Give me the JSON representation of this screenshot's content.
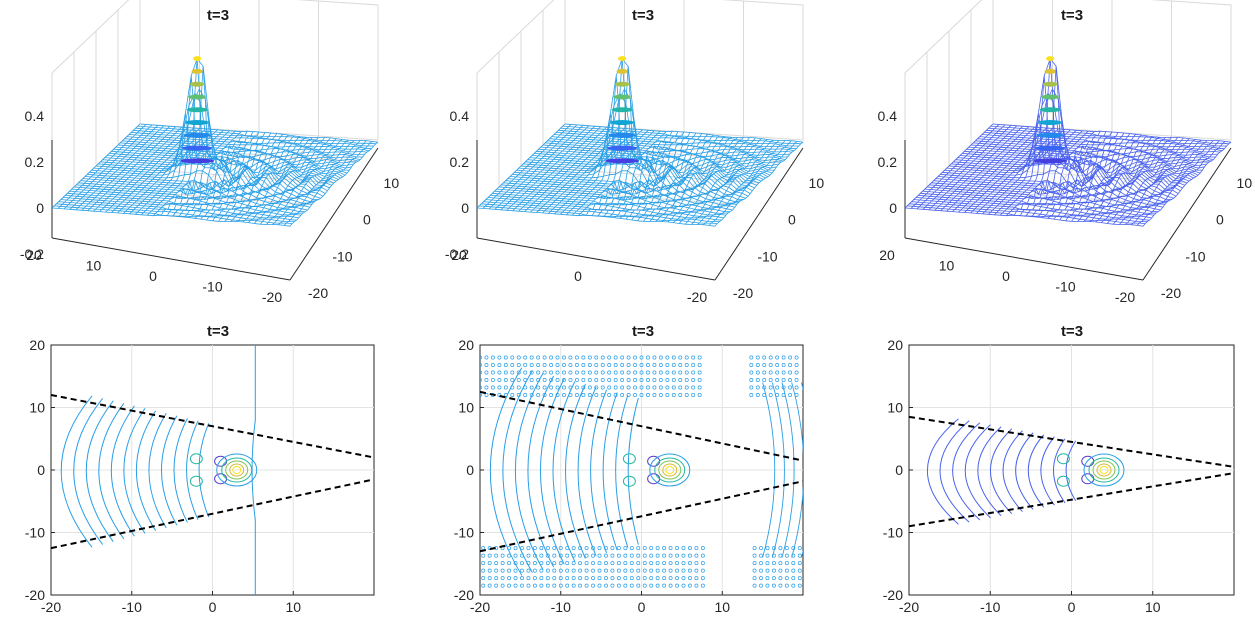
{
  "figure": {
    "layout": "2 rows x 3 columns",
    "colormap": "parula",
    "panel_title": "t=3"
  },
  "chart_data": [
    {
      "type": "surface",
      "title": "t=3",
      "z_ticks": [
        "-0.2",
        "0",
        "0.2",
        "0.4"
      ],
      "x_ticks": [
        "20",
        "10",
        "0",
        "-10",
        "-20"
      ],
      "y_ticks": [
        "-20",
        "-10",
        "0",
        "10"
      ],
      "xlim": [
        -20,
        20
      ],
      "ylim": [
        -20,
        20
      ],
      "zlim": [
        -0.25,
        0.55
      ],
      "peak": {
        "x": 3,
        "y": 0,
        "z": 0.5
      },
      "color": "#2a9fe6"
    },
    {
      "type": "surface",
      "title": "t=3",
      "z_ticks": [
        "-0.2",
        "0",
        "0.2",
        "0.4"
      ],
      "x_ticks": [
        "20",
        "0",
        "-20"
      ],
      "y_ticks": [
        "-20",
        "-10",
        "0",
        "10"
      ],
      "xlim": [
        -20,
        20
      ],
      "ylim": [
        -20,
        20
      ],
      "zlim": [
        -0.25,
        0.55
      ],
      "peak": {
        "x": 3,
        "y": 0,
        "z": 0.5
      },
      "color": "#2a9fe6"
    },
    {
      "type": "surface",
      "title": "t=3",
      "z_ticks": [
        "0",
        "0.2",
        "0.4"
      ],
      "x_ticks": [
        "20",
        "10",
        "0",
        "-10",
        "-20"
      ],
      "y_ticks": [
        "-20",
        "-10",
        "0",
        "10"
      ],
      "xlim": [
        -20,
        20
      ],
      "ylim": [
        -20,
        20
      ],
      "zlim": [
        -0.05,
        0.55
      ],
      "peak": {
        "x": 3,
        "y": 0,
        "z": 0.5
      },
      "color": "#4a63ee"
    },
    {
      "type": "contour",
      "title": "t=3",
      "x_ticks": [
        "-20",
        "-10",
        "0",
        "10"
      ],
      "y_ticks": [
        "-20",
        "-10",
        "0",
        "10",
        "20"
      ],
      "xlim": [
        -20,
        20
      ],
      "ylim": [
        -20,
        20
      ],
      "grid": true,
      "dashed_lines": [
        {
          "x": [
            -20,
            20
          ],
          "y": [
            12,
            2
          ]
        },
        {
          "x": [
            -20,
            20
          ],
          "y": [
            -12.5,
            -1.5
          ]
        }
      ],
      "peak_center": [
        2,
        0
      ],
      "ring_x_range": [
        -20,
        -1
      ],
      "vertical_line_x": 5.3
    },
    {
      "type": "contour",
      "title": "t=3",
      "x_ticks": [
        "-20",
        "-10",
        "0",
        "10"
      ],
      "y_ticks": [
        "-20",
        "-10",
        "0",
        "10",
        "20"
      ],
      "xlim": [
        -20,
        20
      ],
      "ylim": [
        -20,
        20
      ],
      "grid": true,
      "dashed_lines": [
        {
          "x": [
            -20,
            20
          ],
          "y": [
            12.5,
            1.5
          ]
        },
        {
          "x": [
            -20,
            20
          ],
          "y": [
            -13,
            -1.8
          ]
        }
      ],
      "peak_center": [
        2.5,
        0
      ],
      "ring_x_range": [
        -20,
        -1
      ],
      "noisy_band_y": [
        12,
        18
      ]
    },
    {
      "type": "contour",
      "title": "t=3",
      "x_ticks": [
        "-20",
        "-10",
        "0",
        "10"
      ],
      "y_ticks": [
        "-20",
        "-10",
        "0",
        "10",
        "20"
      ],
      "xlim": [
        -20,
        20
      ],
      "ylim": [
        -20,
        20
      ],
      "grid": true,
      "dashed_lines": [
        {
          "x": [
            -20,
            20
          ],
          "y": [
            8.5,
            0.5
          ]
        },
        {
          "x": [
            -20,
            20
          ],
          "y": [
            -9,
            -0.5
          ]
        }
      ],
      "peak_center": [
        3,
        0
      ],
      "ring_x_range": [
        -19,
        0
      ]
    }
  ]
}
